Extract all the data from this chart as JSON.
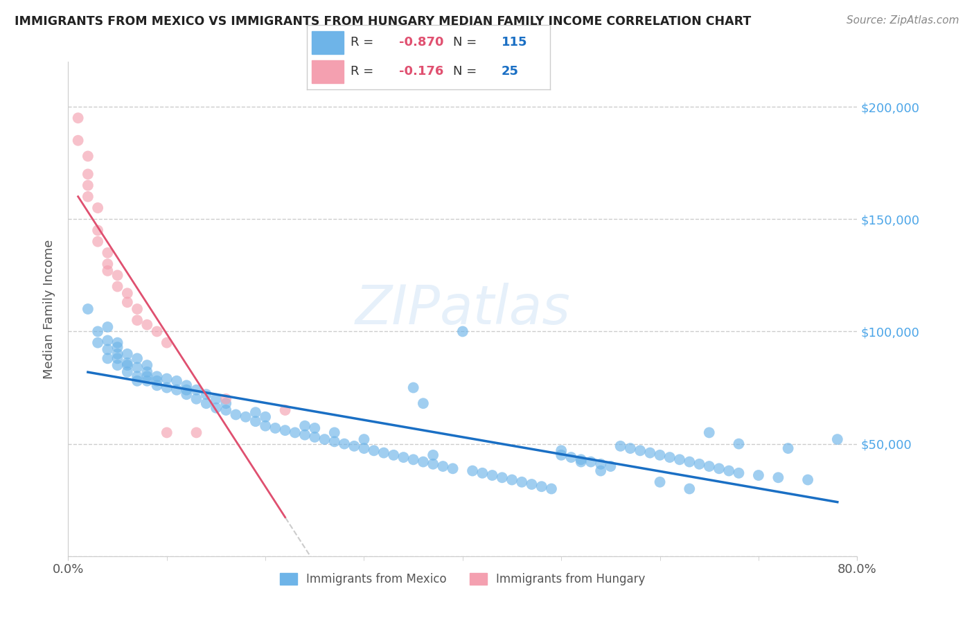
{
  "title": "IMMIGRANTS FROM MEXICO VS IMMIGRANTS FROM HUNGARY MEDIAN FAMILY INCOME CORRELATION CHART",
  "source": "Source: ZipAtlas.com",
  "ylabel": "Median Family Income",
  "xlim": [
    0.0,
    0.8
  ],
  "ylim": [
    0,
    220000
  ],
  "mexico_color": "#6eb4e8",
  "hungary_color": "#f4a0b0",
  "mexico_R": -0.87,
  "mexico_N": 115,
  "hungary_R": -0.176,
  "hungary_N": 25,
  "mexico_line_color": "#1a6fc4",
  "hungary_line_color": "#e05070",
  "hungary_dash_color": "#cccccc",
  "background_color": "#ffffff",
  "mexico_x": [
    0.02,
    0.03,
    0.03,
    0.04,
    0.04,
    0.04,
    0.05,
    0.05,
    0.05,
    0.05,
    0.06,
    0.06,
    0.06,
    0.07,
    0.07,
    0.07,
    0.08,
    0.08,
    0.08,
    0.08,
    0.09,
    0.09,
    0.09,
    0.1,
    0.1,
    0.11,
    0.11,
    0.12,
    0.12,
    0.12,
    0.13,
    0.13,
    0.14,
    0.14,
    0.15,
    0.15,
    0.16,
    0.16,
    0.17,
    0.18,
    0.19,
    0.19,
    0.2,
    0.2,
    0.21,
    0.22,
    0.23,
    0.24,
    0.24,
    0.25,
    0.25,
    0.26,
    0.27,
    0.27,
    0.28,
    0.29,
    0.3,
    0.3,
    0.31,
    0.32,
    0.33,
    0.34,
    0.35,
    0.36,
    0.37,
    0.37,
    0.38,
    0.39,
    0.4,
    0.41,
    0.42,
    0.43,
    0.44,
    0.45,
    0.46,
    0.47,
    0.48,
    0.49,
    0.5,
    0.51,
    0.52,
    0.53,
    0.54,
    0.55,
    0.56,
    0.57,
    0.58,
    0.59,
    0.6,
    0.61,
    0.62,
    0.63,
    0.64,
    0.65,
    0.66,
    0.67,
    0.68,
    0.7,
    0.72,
    0.75,
    0.04,
    0.05,
    0.06,
    0.07,
    0.35,
    0.36,
    0.5,
    0.52,
    0.54,
    0.6,
    0.63,
    0.65,
    0.68,
    0.73,
    0.78
  ],
  "mexico_y": [
    110000,
    95000,
    100000,
    88000,
    92000,
    96000,
    85000,
    90000,
    88000,
    95000,
    82000,
    86000,
    90000,
    80000,
    84000,
    88000,
    78000,
    82000,
    80000,
    85000,
    76000,
    80000,
    78000,
    75000,
    79000,
    74000,
    78000,
    72000,
    76000,
    74000,
    70000,
    74000,
    68000,
    72000,
    66000,
    70000,
    65000,
    68000,
    63000,
    62000,
    60000,
    64000,
    58000,
    62000,
    57000,
    56000,
    55000,
    54000,
    58000,
    53000,
    57000,
    52000,
    51000,
    55000,
    50000,
    49000,
    48000,
    52000,
    47000,
    46000,
    45000,
    44000,
    43000,
    42000,
    41000,
    45000,
    40000,
    39000,
    100000,
    38000,
    37000,
    36000,
    35000,
    34000,
    33000,
    32000,
    31000,
    30000,
    47000,
    44000,
    43000,
    42000,
    41000,
    40000,
    49000,
    48000,
    47000,
    46000,
    45000,
    44000,
    43000,
    42000,
    41000,
    40000,
    39000,
    38000,
    37000,
    36000,
    35000,
    34000,
    102000,
    93000,
    85000,
    78000,
    75000,
    68000,
    45000,
    42000,
    38000,
    33000,
    30000,
    55000,
    50000,
    48000,
    52000
  ],
  "hungary_x": [
    0.01,
    0.01,
    0.02,
    0.02,
    0.02,
    0.02,
    0.03,
    0.03,
    0.03,
    0.04,
    0.04,
    0.04,
    0.05,
    0.05,
    0.06,
    0.06,
    0.07,
    0.07,
    0.08,
    0.09,
    0.1,
    0.1,
    0.13,
    0.16,
    0.22
  ],
  "hungary_y": [
    195000,
    185000,
    178000,
    170000,
    165000,
    160000,
    155000,
    145000,
    140000,
    135000,
    130000,
    127000,
    125000,
    120000,
    117000,
    113000,
    110000,
    105000,
    103000,
    100000,
    95000,
    55000,
    55000,
    70000,
    65000
  ]
}
